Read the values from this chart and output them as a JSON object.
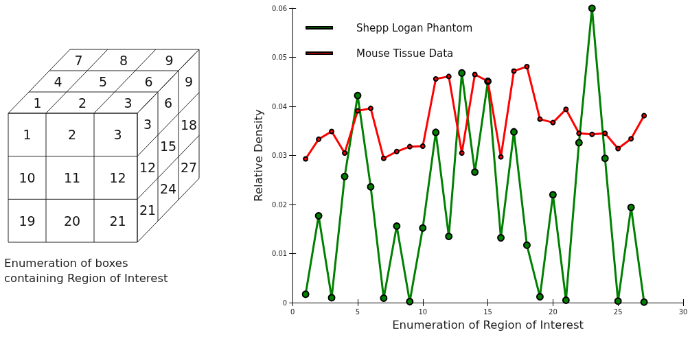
{
  "chart_data": [
    {
      "type": "other",
      "annotations": [
        "7 8 9",
        "4 5 6",
        "1 2 3",
        "1 2 3",
        "10 11 12",
        "19 20 21",
        "3",
        "12",
        "21",
        "6",
        "15",
        "24",
        "9",
        "18",
        "27",
        "Enumeration of boxes containing Region of Interest"
      ]
    },
    {
      "type": "line",
      "xlabel": "Enumeration of Region of Interest",
      "ylabel": "Relative Density",
      "x": [
        1,
        2,
        3,
        4,
        5,
        6,
        7,
        8,
        9,
        10,
        11,
        12,
        13,
        14,
        15,
        16,
        17,
        18,
        19,
        20,
        21,
        22,
        23,
        24,
        25,
        26,
        27
      ],
      "series": [
        {
          "name": "Shepp Logan Phantom",
          "color": "#008000",
          "values": [
            0.0017,
            0.0177,
            0.001,
            0.0257,
            0.0422,
            0.0236,
            0.0009,
            0.0156,
            0.0002,
            0.0152,
            0.0347,
            0.0135,
            0.0468,
            0.0266,
            0.0451,
            0.0132,
            0.0348,
            0.0117,
            0.0012,
            0.022,
            0.0005,
            0.0326,
            0.06,
            0.0294,
            0.0003,
            0.0194,
            0.0001
          ]
        },
        {
          "name": "Mouse Tissue Data",
          "color": "#ff0000",
          "values": [
            0.0293,
            0.0333,
            0.0349,
            0.0305,
            0.0391,
            0.0396,
            0.0294,
            0.0308,
            0.0318,
            0.0319,
            0.0456,
            0.0461,
            0.0305,
            0.0465,
            0.0451,
            0.0297,
            0.0472,
            0.0481,
            0.0374,
            0.0367,
            0.0394,
            0.0345,
            0.0343,
            0.0345,
            0.0314,
            0.0334,
            0.0381
          ]
        }
      ],
      "xlim": [
        0,
        30
      ],
      "xticks": [
        0,
        5,
        10,
        15,
        20,
        25,
        30
      ],
      "ylim": [
        0,
        0.06
      ],
      "yticks": [
        0,
        0.01,
        0.02,
        0.03,
        0.04,
        0.05,
        0.06
      ],
      "grid": false,
      "legend": "top left",
      "marker": "circle",
      "line_style": "solid"
    }
  ]
}
